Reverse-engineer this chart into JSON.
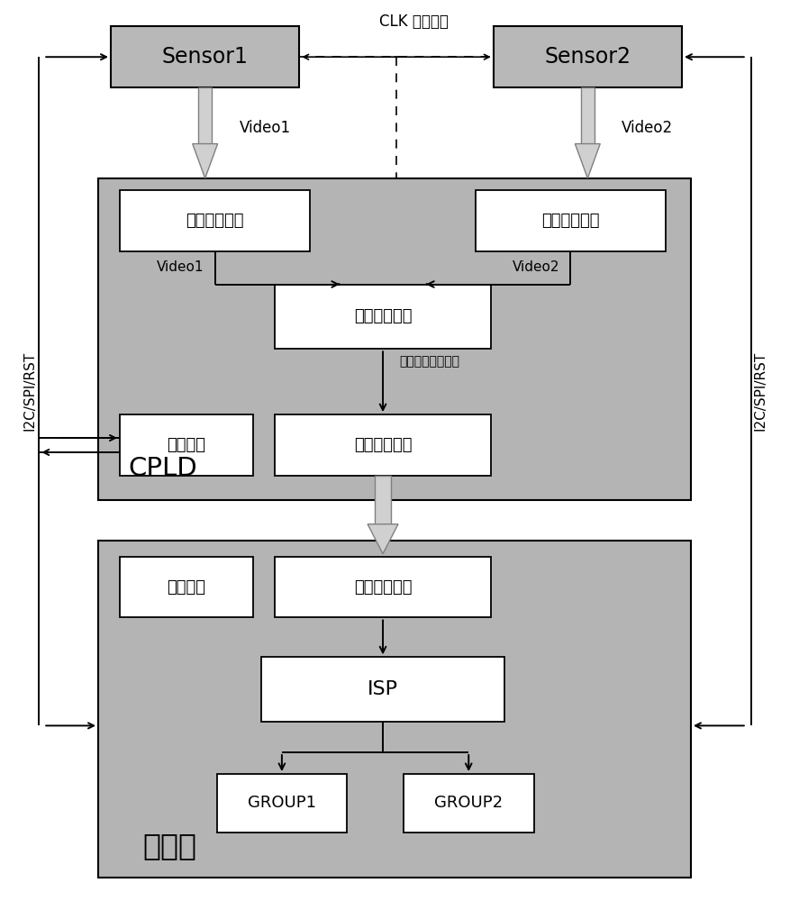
{
  "bg_color": "#ffffff",
  "box_white": "#ffffff",
  "box_gray_sensor": "#b8b8b8",
  "cpld_bg": "#b4b4b4",
  "main_bg": "#b4b4b4",
  "edge_color": "#000000",
  "arrow_fat_fill": "#d0d0d0",
  "arrow_fat_edge": "#808080",
  "sensor1": "Sensor1",
  "sensor2": "Sensor2",
  "clk_label": "CLK 参考时钟",
  "iface1": "接口转换模块",
  "iface2": "接口转换模块",
  "data_splice": "数据拼接模块",
  "data_out": "数据输出模块",
  "comm1": "通信模块",
  "comm2": "通信模块",
  "video_in": "视频输入接口",
  "isp": "ISP",
  "group1": "GROUP1",
  "group2": "GROUP2",
  "cpld": "CPLD",
  "main_chip": "主芯片",
  "i2c_left": "I2C/SPI/RST",
  "i2c_right": "I2C/SPI/RST",
  "video1a": "Video1",
  "video2a": "Video2",
  "video1b": "Video1",
  "video2b": "Video2",
  "mixed": "两路视频混合信号"
}
